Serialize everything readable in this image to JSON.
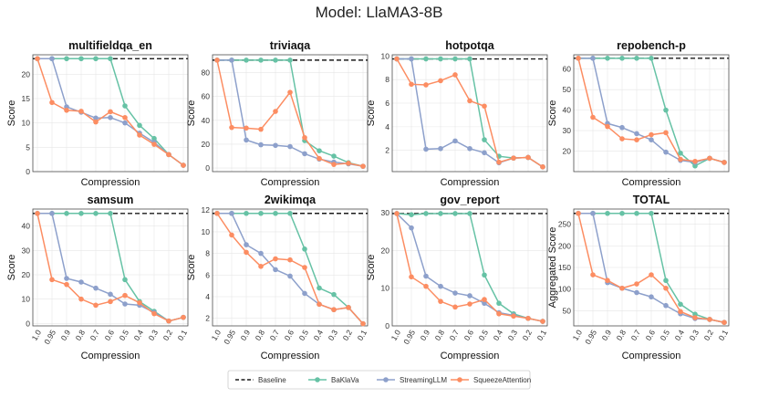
{
  "figure_title": "Model: LlaMA3-8B",
  "colors": {
    "baseline": "#1a1a1a",
    "baklava": "#66c2a5",
    "streaming": "#8da0cb",
    "squeeze": "#fc8d62",
    "grid": "#e6e6e6",
    "axis": "#4d4d4d"
  },
  "legend": {
    "baseline": "Baseline",
    "baklava": "BaKlaVa",
    "streaming": "StreamingLLM",
    "squeeze": "SqueezeAttention"
  },
  "chart_data": [
    {
      "type": "line",
      "title": "multifieldqa_en",
      "xlabel": "Compression",
      "ylabel": "Score",
      "categories": [
        "1.0",
        "0.95",
        "0.9",
        "0.8",
        "0.7",
        "0.6",
        "0.5",
        "0.4",
        "0.3",
        "0.2",
        "0.1"
      ],
      "ylim": [
        0,
        24
      ],
      "yticks": [
        0,
        5,
        10,
        15,
        20
      ],
      "baseline": 23.2,
      "show_xticks": false,
      "series": [
        {
          "name": "BaKlaVa",
          "key": "baklava",
          "values": [
            23.2,
            23.2,
            23.2,
            23.2,
            23.2,
            23.2,
            13.5,
            9.5,
            6.8,
            3.5,
            1.3
          ]
        },
        {
          "name": "StreamingLLM",
          "key": "streaming",
          "values": [
            23.2,
            23.2,
            13.3,
            12.2,
            11.0,
            11.1,
            10.0,
            7.9,
            6.0,
            3.5,
            1.3
          ]
        },
        {
          "name": "SqueezeAttention",
          "key": "squeeze",
          "values": [
            23.2,
            14.2,
            12.6,
            12.4,
            10.2,
            12.3,
            11.1,
            7.5,
            5.6,
            3.5,
            1.3
          ]
        }
      ]
    },
    {
      "type": "line",
      "title": "triviaqa",
      "xlabel": "Compression",
      "ylabel": "Score",
      "categories": [
        "1.0",
        "0.95",
        "0.9",
        "0.8",
        "0.7",
        "0.6",
        "0.5",
        "0.4",
        "0.3",
        "0.2",
        "0.1"
      ],
      "ylim": [
        -3,
        95
      ],
      "yticks": [
        0,
        20,
        40,
        60,
        80
      ],
      "baseline": 90.5,
      "show_xticks": false,
      "series": [
        {
          "name": "BaKlaVa",
          "key": "baklava",
          "values": [
            90.5,
            90.5,
            90.5,
            90.5,
            90.5,
            90.5,
            23.0,
            14.5,
            10.0,
            4.5,
            1.5
          ]
        },
        {
          "name": "StreamingLLM",
          "key": "streaming",
          "values": [
            90.5,
            90.5,
            23.5,
            19.5,
            19.0,
            18.0,
            12.0,
            7.5,
            5.0,
            3.5,
            1.5
          ]
        },
        {
          "name": "SqueezeAttention",
          "key": "squeeze",
          "values": [
            90.5,
            34.0,
            33.5,
            32.5,
            47.5,
            63.5,
            25.5,
            8.0,
            3.0,
            4.0,
            1.5
          ]
        }
      ]
    },
    {
      "type": "line",
      "title": "hotpotqa",
      "xlabel": "Compression",
      "ylabel": "Score",
      "categories": [
        "1.0",
        "0.95",
        "0.9",
        "0.8",
        "0.7",
        "0.6",
        "0.5",
        "0.4",
        "0.3",
        "0.2",
        "0.1"
      ],
      "ylim": [
        0.2,
        10.1
      ],
      "yticks": [
        2,
        4,
        6,
        8,
        10
      ],
      "baseline": 9.75,
      "show_xticks": false,
      "series": [
        {
          "name": "BaKlaVa",
          "key": "baklava",
          "values": [
            9.75,
            9.75,
            9.75,
            9.75,
            9.75,
            9.75,
            2.9,
            1.5,
            1.35,
            1.4,
            0.6
          ]
        },
        {
          "name": "StreamingLLM",
          "key": "streaming",
          "values": [
            9.75,
            9.75,
            2.1,
            2.15,
            2.8,
            2.15,
            1.8,
            0.95,
            1.35,
            1.4,
            0.6
          ]
        },
        {
          "name": "SqueezeAttention",
          "key": "squeeze",
          "values": [
            9.75,
            7.6,
            7.55,
            7.9,
            8.4,
            6.2,
            5.75,
            1.0,
            1.35,
            1.4,
            0.6
          ]
        }
      ]
    },
    {
      "type": "line",
      "title": "repobench-p",
      "xlabel": "Compression",
      "ylabel": "Score",
      "categories": [
        "1.0",
        "0.95",
        "0.9",
        "0.8",
        "0.7",
        "0.6",
        "0.5",
        "0.4",
        "0.3",
        "0.2",
        "0.1"
      ],
      "ylim": [
        10,
        67
      ],
      "yticks": [
        20,
        30,
        40,
        50,
        60
      ],
      "baseline": 65.3,
      "show_xticks": false,
      "series": [
        {
          "name": "BaKlaVa",
          "key": "baklava",
          "values": [
            65.3,
            65.3,
            65.3,
            65.3,
            65.3,
            65.3,
            40.0,
            19.0,
            12.8,
            16.5,
            14.5
          ]
        },
        {
          "name": "StreamingLLM",
          "key": "streaming",
          "values": [
            65.3,
            65.3,
            33.5,
            31.5,
            28.5,
            25.5,
            19.5,
            15.5,
            14.5,
            16.5,
            14.5
          ]
        },
        {
          "name": "SqueezeAttention",
          "key": "squeeze",
          "values": [
            65.3,
            36.5,
            32.0,
            26.0,
            25.5,
            28.0,
            29.0,
            16.0,
            15.0,
            16.5,
            14.5
          ]
        }
      ]
    },
    {
      "type": "line",
      "title": "samsum",
      "xlabel": "Compression",
      "ylabel": "Score",
      "categories": [
        "1.0",
        "0.95",
        "0.9",
        "0.8",
        "0.7",
        "0.6",
        "0.5",
        "0.4",
        "0.3",
        "0.2",
        "0.1"
      ],
      "ylim": [
        -1,
        47
      ],
      "yticks": [
        0,
        10,
        20,
        30,
        40
      ],
      "baseline": 45.2,
      "show_xticks": true,
      "series": [
        {
          "name": "BaKlaVa",
          "key": "baklava",
          "values": [
            45.2,
            45.2,
            45.2,
            45.2,
            45.2,
            45.2,
            18.0,
            9.0,
            5.0,
            1.0,
            2.5
          ]
        },
        {
          "name": "StreamingLLM",
          "key": "streaming",
          "values": [
            45.2,
            45.2,
            18.5,
            17.0,
            14.5,
            12.0,
            8.0,
            7.5,
            4.5,
            1.0,
            2.5
          ]
        },
        {
          "name": "SqueezeAttention",
          "key": "squeeze",
          "values": [
            45.2,
            18.0,
            16.0,
            10.0,
            7.5,
            9.0,
            11.5,
            8.5,
            4.0,
            1.0,
            2.5
          ]
        }
      ]
    },
    {
      "type": "line",
      "title": "2wikimqa",
      "xlabel": "Compression",
      "ylabel": "Score",
      "categories": [
        "1.0",
        "0.95",
        "0.9",
        "0.8",
        "0.7",
        "0.6",
        "0.5",
        "0.4",
        "0.3",
        "0.2",
        "0.1"
      ],
      "ylim": [
        1.3,
        12.1
      ],
      "yticks": [
        2,
        4,
        6,
        8,
        10,
        12
      ],
      "baseline": 11.7,
      "show_xticks": true,
      "series": [
        {
          "name": "BaKlaVa",
          "key": "baklava",
          "values": [
            11.7,
            11.7,
            11.7,
            11.7,
            11.7,
            11.7,
            8.4,
            4.8,
            4.2,
            3.0,
            1.5
          ]
        },
        {
          "name": "StreamingLLM",
          "key": "streaming",
          "values": [
            11.7,
            11.7,
            8.8,
            8.0,
            6.5,
            5.9,
            4.3,
            3.3,
            2.8,
            3.0,
            1.5
          ]
        },
        {
          "name": "SqueezeAttention",
          "key": "squeeze",
          "values": [
            11.7,
            9.7,
            8.1,
            6.8,
            7.5,
            7.4,
            6.7,
            3.3,
            2.8,
            3.0,
            1.5
          ]
        }
      ]
    },
    {
      "type": "line",
      "title": "gov_report",
      "xlabel": "Compression",
      "ylabel": "Score",
      "categories": [
        "1.0",
        "0.95",
        "0.9",
        "0.8",
        "0.7",
        "0.6",
        "0.5",
        "0.4",
        "0.3",
        "0.2",
        "0.1"
      ],
      "ylim": [
        0,
        31
      ],
      "yticks": [
        0,
        10,
        20,
        30
      ],
      "baseline": 29.8,
      "show_xticks": true,
      "series": [
        {
          "name": "BaKlaVa",
          "key": "baklava",
          "values": [
            29.8,
            29.5,
            29.8,
            29.8,
            29.8,
            29.8,
            13.5,
            6.0,
            3.2,
            2.0,
            1.2
          ]
        },
        {
          "name": "StreamingLLM",
          "key": "streaming",
          "values": [
            29.8,
            26.0,
            13.2,
            10.5,
            8.7,
            8.0,
            6.0,
            3.5,
            2.8,
            2.0,
            1.2
          ]
        },
        {
          "name": "SqueezeAttention",
          "key": "squeeze",
          "values": [
            29.8,
            13.0,
            10.5,
            6.5,
            5.0,
            5.8,
            7.0,
            3.2,
            2.6,
            2.0,
            1.2
          ]
        }
      ]
    },
    {
      "type": "line",
      "title": "TOTAL",
      "xlabel": "Compression",
      "ylabel": "Aggregated Score",
      "categories": [
        "1.0",
        "0.95",
        "0.9",
        "0.8",
        "0.7",
        "0.6",
        "0.5",
        "0.4",
        "0.3",
        "0.2",
        "0.1"
      ],
      "ylim": [
        15,
        285
      ],
      "yticks": [
        50,
        100,
        150,
        200,
        250
      ],
      "baseline": 275,
      "show_xticks": true,
      "series": [
        {
          "name": "BaKlaVa",
          "key": "baklava",
          "values": [
            275,
            275,
            275,
            275,
            275,
            275,
            120,
            65,
            42,
            30,
            23
          ]
        },
        {
          "name": "StreamingLLM",
          "key": "streaming",
          "values": [
            275,
            275,
            115,
            102,
            92,
            82,
            62,
            43,
            32,
            30,
            23
          ]
        },
        {
          "name": "SqueezeAttention",
          "key": "squeeze",
          "values": [
            275,
            133,
            120,
            102,
            112,
            133,
            102,
            48,
            34,
            30,
            23
          ]
        }
      ]
    }
  ]
}
